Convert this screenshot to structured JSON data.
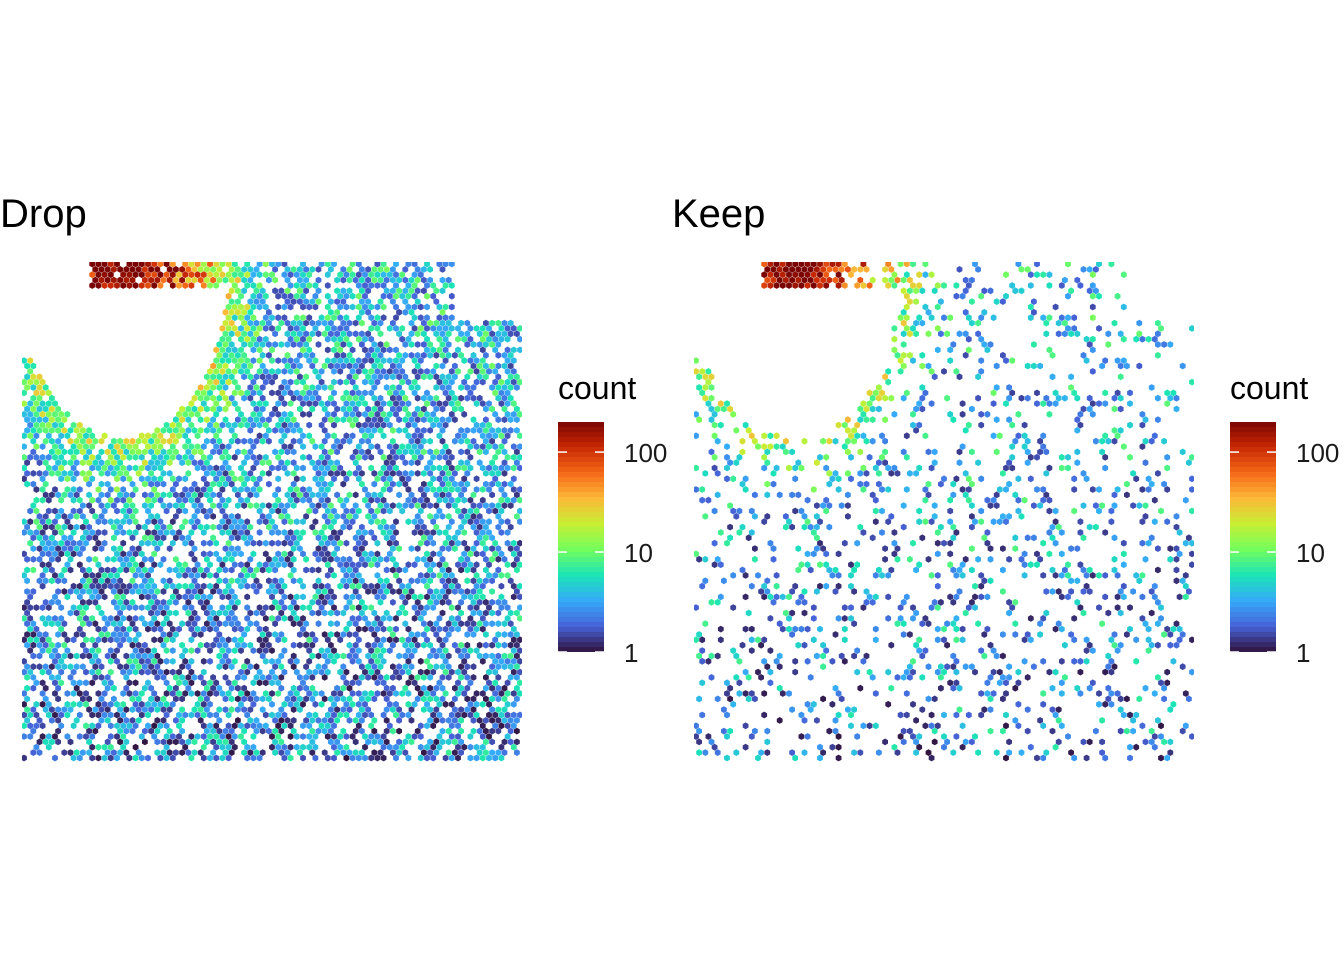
{
  "chart_data": [
    {
      "type": "heatmap",
      "title": "Drop",
      "legend": {
        "title": "count",
        "scale": "log10",
        "placement": "right",
        "range": [
          1,
          200
        ],
        "ticks": [
          {
            "value": 1,
            "label": "1"
          },
          {
            "value": 10,
            "label": "10"
          },
          {
            "value": 100,
            "label": "100"
          }
        ]
      },
      "color_scale": [
        "#30123b",
        "#4662d7",
        "#36aaf9",
        "#1ae4b6",
        "#72fe5e",
        "#c7ef34",
        "#fbb938",
        "#f56918",
        "#c92903",
        "#7a0403"
      ],
      "grid": false,
      "axes_visible": false,
      "x_range": [
        0,
        1
      ],
      "y_range": [
        0,
        1
      ],
      "pattern": {
        "density": 0.64,
        "seed": 7,
        "empty_quarter_disc": true
      }
    },
    {
      "type": "heatmap",
      "title": "Keep",
      "legend": {
        "title": "count",
        "scale": "log10",
        "placement": "right",
        "range": [
          1,
          200
        ],
        "ticks": [
          {
            "value": 1,
            "label": "1"
          },
          {
            "value": 10,
            "label": "10"
          },
          {
            "value": 100,
            "label": "100"
          }
        ]
      },
      "color_scale": [
        "#30123b",
        "#4662d7",
        "#36aaf9",
        "#1ae4b6",
        "#72fe5e",
        "#c7ef34",
        "#fbb938",
        "#f56918",
        "#c92903",
        "#7a0403"
      ],
      "grid": false,
      "axes_visible": false,
      "x_range": [
        0,
        1
      ],
      "y_range": [
        0,
        1
      ],
      "pattern": {
        "density": 0.2,
        "seed": 19,
        "empty_quarter_disc": true
      }
    }
  ]
}
